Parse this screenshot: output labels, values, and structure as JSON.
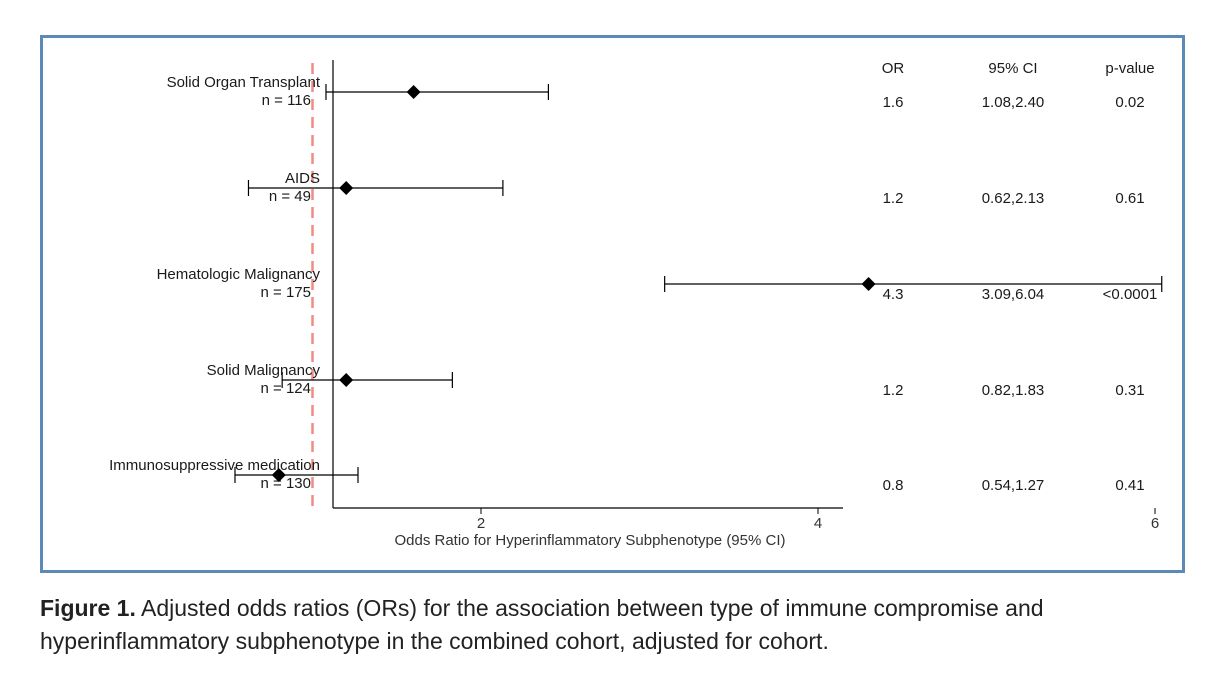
{
  "chart_data": {
    "type": "forest",
    "xlabel": "Odds Ratio for Hyperinflammatory Subphenotype (95% CI)",
    "xlim": [
      0.3,
      6.3
    ],
    "xticks": [
      2,
      4,
      6
    ],
    "reference_line": 1,
    "reference_color": "#f08c84",
    "marker": "diamond",
    "columns": [
      "OR",
      "95% CI",
      "p-value"
    ],
    "rows": [
      {
        "label": "Solid Organ Transplant",
        "n": "n = 116",
        "or": 1.6,
        "ci_low": 1.08,
        "ci_high": 2.4,
        "or_text": "1.6",
        "ci_text": "1.08,2.40",
        "p_text": "0.02"
      },
      {
        "label": "AIDS",
        "n": "n = 49",
        "or": 1.2,
        "ci_low": 0.62,
        "ci_high": 2.13,
        "or_text": "1.2",
        "ci_text": "0.62,2.13",
        "p_text": "0.61"
      },
      {
        "label": "Hematologic Malignancy",
        "n": "n = 175",
        "or": 4.3,
        "ci_low": 3.09,
        "ci_high": 6.04,
        "or_text": "4.3",
        "ci_text": "3.09,6.04",
        "p_text": "<0.0001"
      },
      {
        "label": "Solid Malignancy",
        "n": "n = 124",
        "or": 1.2,
        "ci_low": 0.82,
        "ci_high": 1.83,
        "or_text": "1.2",
        "ci_text": "0.82,1.83",
        "p_text": "0.31"
      },
      {
        "label": "Immunosuppressive medication",
        "n": "n = 130",
        "or": 0.8,
        "ci_low": 0.54,
        "ci_high": 1.27,
        "or_text": "0.8",
        "ci_text": "0.54,1.27",
        "p_text": "0.41"
      }
    ]
  },
  "caption": {
    "label": "Figure 1.",
    "text": " Adjusted odds ratios (ORs) for the association between type of immune compromise and hyperinflammatory subphenotype in the combined cohort, adjusted for cohort."
  },
  "colors": {
    "frame": "#5b8ab8",
    "reference": "#f08c84",
    "ink": "#000000"
  }
}
